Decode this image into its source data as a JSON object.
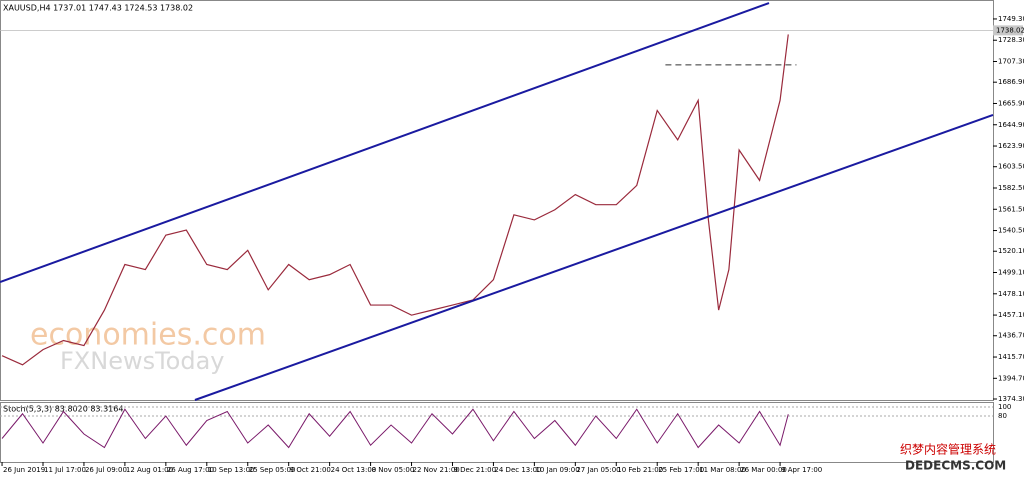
{
  "chart_data": {
    "type": "line",
    "title": "XAUUSD,H4  1737.01 1747.43 1724.53 1738.02",
    "current_price": {
      "value": 1738.02,
      "label": "1738.02"
    },
    "watermarks": [
      "economies.com",
      "FXNewsToday",
      "织梦内容管理系统",
      "DEDECMS.COM"
    ],
    "xlim": [
      -0.05,
      24.2
    ],
    "xticks": [
      {
        "value": 0,
        "label": "26 Jun 2019"
      },
      {
        "value": 1,
        "label": "11 Jul 17:00"
      },
      {
        "value": 2,
        "label": "26 Jul 09:00"
      },
      {
        "value": 3,
        "label": "12 Aug 01:00"
      },
      {
        "value": 4,
        "label": "26 Aug 17:00"
      },
      {
        "value": 5,
        "label": "10 Sep 13:00"
      },
      {
        "value": 6,
        "label": "25 Sep 05:00"
      },
      {
        "value": 7,
        "label": "9 Oct 21:00"
      },
      {
        "value": 8,
        "label": "24 Oct 13:00"
      },
      {
        "value": 9,
        "label": "8 Nov 05:00"
      },
      {
        "value": 10,
        "label": "22 Nov 21:00"
      },
      {
        "value": 11,
        "label": "9 Dec 21:00"
      },
      {
        "value": 12,
        "label": "24 Dec 13:00"
      },
      {
        "value": 13,
        "label": "10 Jan 09:00"
      },
      {
        "value": 14,
        "label": "27 Jan 05:00"
      },
      {
        "value": 15,
        "label": "10 Feb 21:00"
      },
      {
        "value": 16,
        "label": "25 Feb 17:00"
      },
      {
        "value": 17,
        "label": "11 Mar 08:00"
      },
      {
        "value": 18,
        "label": "26 Mar 00:00"
      },
      {
        "value": 19,
        "label": "9 Apr 17:00"
      }
    ],
    "ylim": [
      1373.3,
      1768
    ],
    "yticks": [
      {
        "value": 1749.3,
        "label": "1749.30"
      },
      {
        "value": 1728.3,
        "label": "1728.30"
      },
      {
        "value": 1707.3,
        "label": "1707.30"
      },
      {
        "value": 1686.9,
        "label": "1686.90"
      },
      {
        "value": 1665.9,
        "label": "1665.90"
      },
      {
        "value": 1644.9,
        "label": "1644.90"
      },
      {
        "value": 1623.9,
        "label": "1623.90"
      },
      {
        "value": 1603.5,
        "label": "1603.50"
      },
      {
        "value": 1582.5,
        "label": "1582.50"
      },
      {
        "value": 1561.5,
        "label": "1561.50"
      },
      {
        "value": 1540.5,
        "label": "1540.50"
      },
      {
        "value": 1520.1,
        "label": "1520.10"
      },
      {
        "value": 1499.1,
        "label": "1499.10"
      },
      {
        "value": 1478.1,
        "label": "1478.10"
      },
      {
        "value": 1457.1,
        "label": "1457.10"
      },
      {
        "value": 1436.7,
        "label": "1436.70"
      },
      {
        "value": 1415.7,
        "label": "1415.70"
      },
      {
        "value": 1394.7,
        "label": "1394.70"
      },
      {
        "value": 1374.3,
        "label": "1374.30"
      }
    ],
    "series": [
      {
        "name": "XAUUSD",
        "color": "#9a2a3c",
        "x": [
          0,
          0.5,
          1,
          1.5,
          2,
          2.5,
          3,
          3.5,
          4,
          4.5,
          5,
          5.5,
          6,
          6.5,
          7,
          7.5,
          8,
          8.5,
          9,
          9.5,
          10,
          10.5,
          11,
          11.5,
          12,
          12.5,
          13,
          13.5,
          14,
          14.5,
          15,
          15.5,
          16,
          16.5,
          17,
          17.25,
          17.5,
          17.75,
          18,
          18.5,
          19,
          19.2
        ],
        "values": [
          1417,
          1408,
          1423,
          1432,
          1427,
          1462,
          1507,
          1502,
          1536,
          1541,
          1507,
          1502,
          1521,
          1482,
          1507,
          1492,
          1497,
          1507,
          1467,
          1467,
          1457,
          1462,
          1467,
          1472,
          1492,
          1556,
          1551,
          1561,
          1576,
          1566,
          1566,
          1585,
          1659,
          1630,
          1669,
          1551,
          1462,
          1502,
          1620,
          1590,
          1669,
          1734
        ]
      }
    ],
    "trendlines": [
      {
        "color": "#1a1aa0",
        "x": [
          -0.05,
          18.73
        ],
        "values": [
          1489.7,
          1765
        ]
      },
      {
        "color": "#1a1aa0",
        "x": [
          4.71,
          24.2
        ],
        "values": [
          1373.3,
          1654.6
        ]
      },
      {
        "color": "#333333",
        "dashed": true,
        "x": [
          16.2,
          19.4
        ],
        "values": [
          1704,
          1704
        ]
      }
    ],
    "stochastic": {
      "title": "Stoch(5,3,3) 83.8020 83.3164",
      "ylim": [
        0,
        100
      ],
      "yticks": [
        100,
        80
      ],
      "color": "#7a1a6a",
      "x": [
        0,
        0.5,
        1,
        1.5,
        2,
        2.5,
        3,
        3.5,
        4,
        4.5,
        5,
        5.5,
        6,
        6.5,
        7,
        7.5,
        8,
        8.5,
        9,
        9.5,
        10,
        10.5,
        11,
        11.5,
        12,
        12.5,
        13,
        13.5,
        14,
        14.5,
        15,
        15.5,
        16,
        16.5,
        17,
        17.5,
        18,
        18.5,
        19,
        19.2
      ],
      "values": [
        30,
        85,
        20,
        90,
        40,
        10,
        95,
        30,
        80,
        15,
        70,
        90,
        20,
        60,
        10,
        85,
        35,
        90,
        15,
        60,
        20,
        85,
        40,
        95,
        25,
        90,
        30,
        70,
        15,
        80,
        30,
        95,
        20,
        85,
        10,
        60,
        20,
        90,
        15,
        84
      ]
    }
  }
}
